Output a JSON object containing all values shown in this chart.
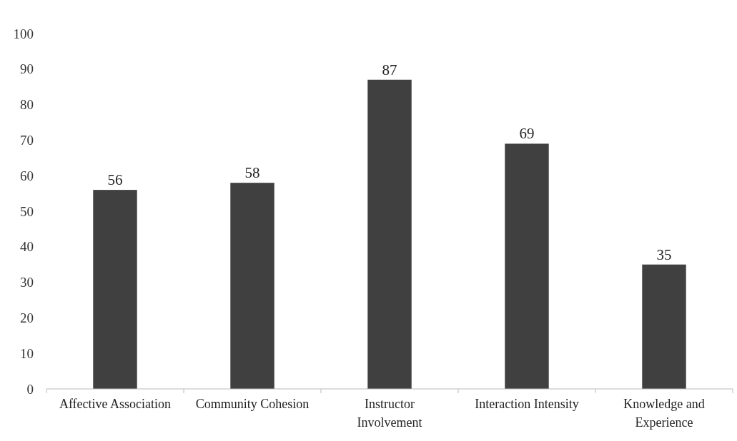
{
  "chart_data": {
    "type": "bar",
    "categories": [
      "Affective Association",
      "Community Cohesion",
      "Instructor Involvement",
      "Interaction Intensity",
      "Knowledge and Experience"
    ],
    "values": [
      56,
      58,
      87,
      69,
      35
    ],
    "color": "#404040",
    "ylim": [
      0,
      100
    ],
    "yticks": [
      0,
      10,
      20,
      30,
      40,
      50,
      60,
      70,
      80,
      90,
      100
    ],
    "data_labels": true
  }
}
